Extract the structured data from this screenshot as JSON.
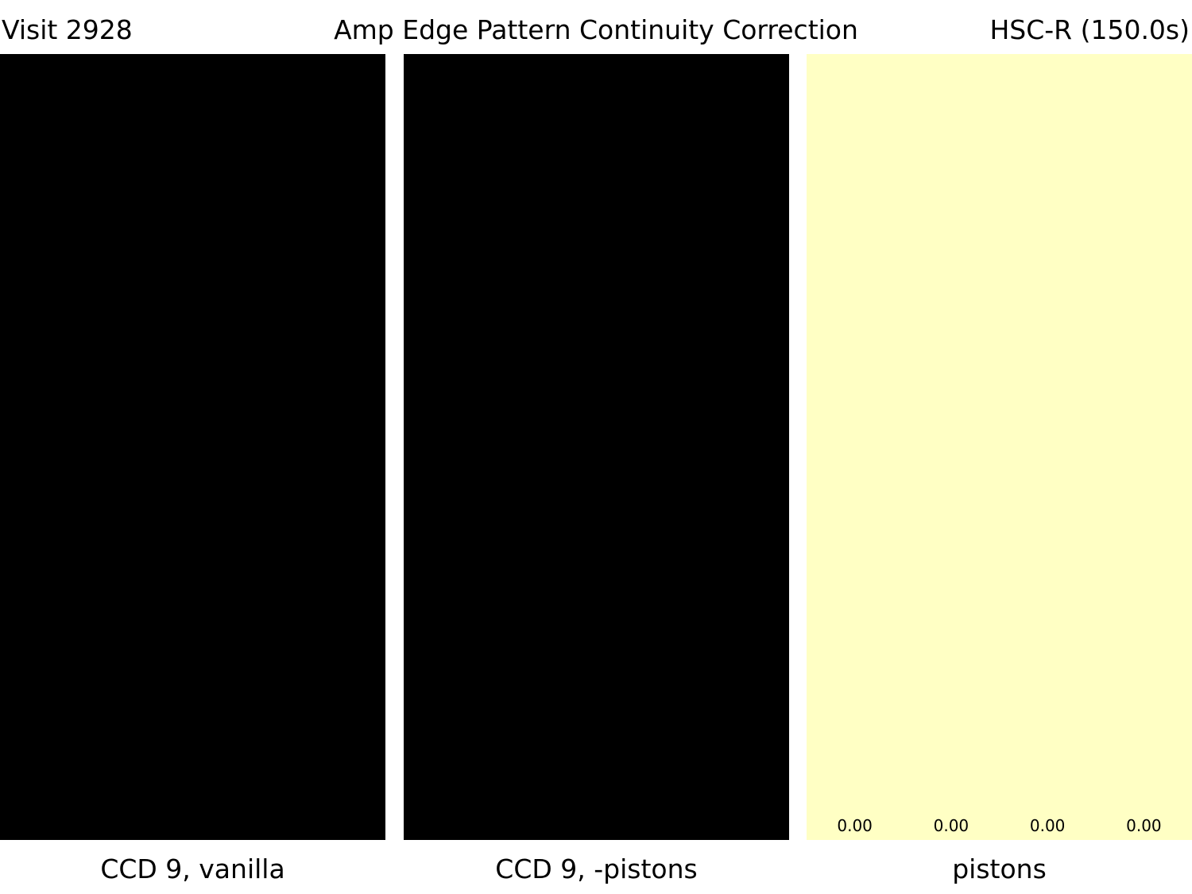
{
  "header": {
    "left": "Visit 2928",
    "title": "Amp Edge Pattern Continuity Correction",
    "right": "HSC-R (150.0s)"
  },
  "panels": [
    {
      "caption": "CCD 9, vanilla",
      "fill": "#000000"
    },
    {
      "caption": "CCD 9, -pistons",
      "fill": "#000000"
    },
    {
      "caption": "pistons",
      "fill": "#ffffc4"
    }
  ],
  "chart_data": {
    "type": "heatmap",
    "title": "Amp Edge Pattern Continuity Correction",
    "panels": [
      "CCD 9, vanilla",
      "CCD 9, -pistons",
      "pistons"
    ],
    "pistons": {
      "amplifiers": 4,
      "values": [
        0.0,
        0.0,
        0.0,
        0.0
      ],
      "labels": [
        "0.00",
        "0.00",
        "0.00",
        "0.00"
      ]
    }
  }
}
